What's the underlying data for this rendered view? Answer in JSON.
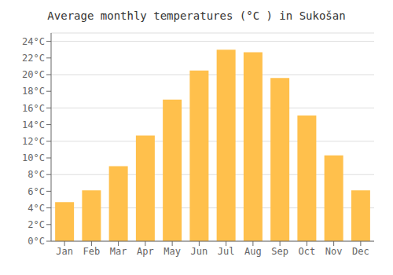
{
  "chart_data": {
    "type": "bar",
    "title": "Average monthly temperatures (°C ) in Sukošan",
    "categories": [
      "Jan",
      "Feb",
      "Mar",
      "Apr",
      "May",
      "Jun",
      "Jul",
      "Aug",
      "Sep",
      "Oct",
      "Nov",
      "Dec"
    ],
    "values": [
      4.7,
      6.1,
      9.0,
      12.7,
      17.0,
      20.5,
      23.0,
      22.7,
      19.6,
      15.1,
      10.3,
      6.1
    ],
    "color": "#FFC04C",
    "ylim": [
      0,
      25
    ],
    "yticks": [
      {
        "value": 0,
        "label": "0°C"
      },
      {
        "value": 2,
        "label": "2°C"
      },
      {
        "value": 4,
        "label": "4°C"
      },
      {
        "value": 6,
        "label": "6°C"
      },
      {
        "value": 8,
        "label": "8°C"
      },
      {
        "value": 10,
        "label": "10°C"
      },
      {
        "value": 12,
        "label": "12°C"
      },
      {
        "value": 14,
        "label": "14°C"
      },
      {
        "value": 16,
        "label": "16°C"
      },
      {
        "value": 18,
        "label": "18°C"
      },
      {
        "value": 20,
        "label": "20°C"
      },
      {
        "value": 22,
        "label": "22°C"
      },
      {
        "value": 24,
        "label": "24°C"
      }
    ],
    "grid": true
  }
}
